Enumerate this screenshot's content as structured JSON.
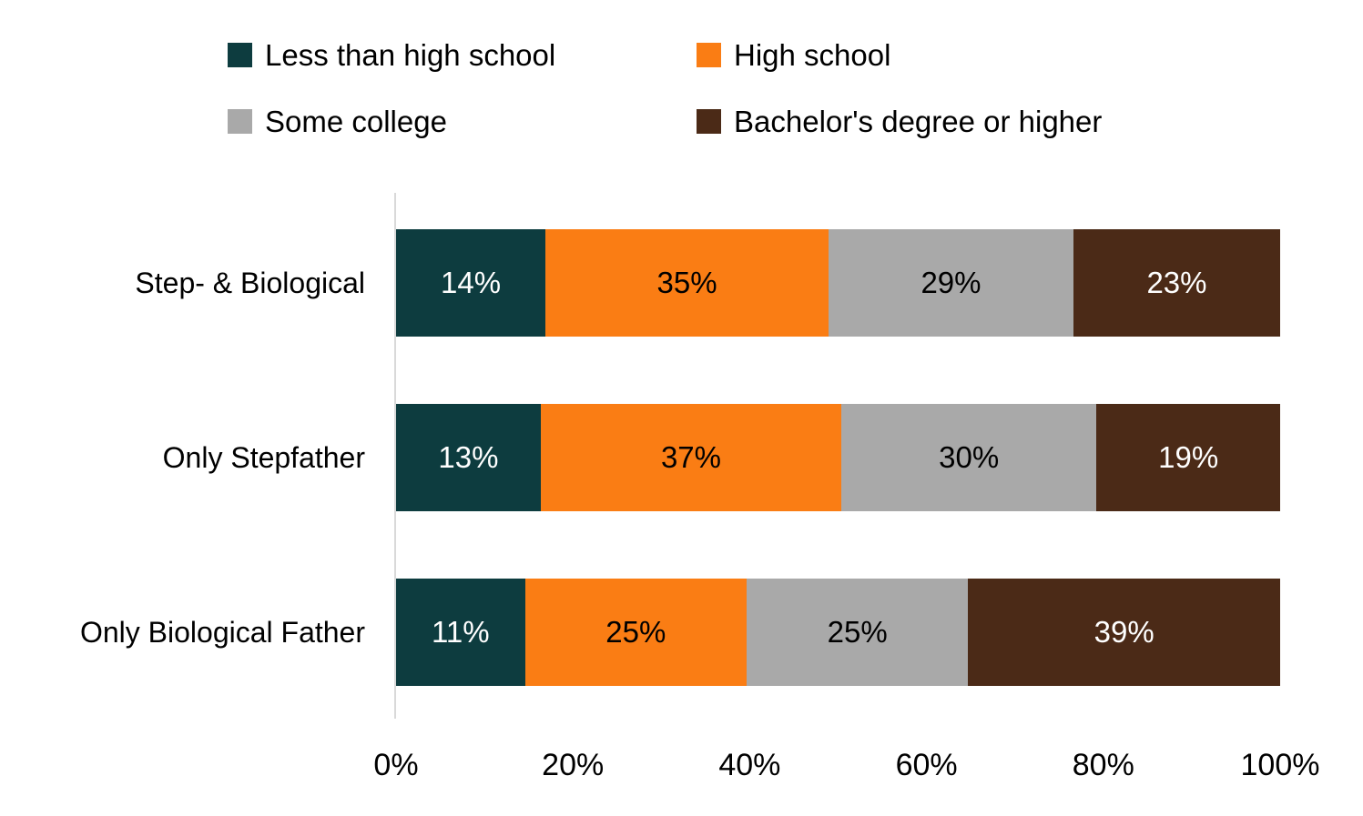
{
  "chart_data": {
    "type": "bar",
    "orientation": "horizontal",
    "stacked": true,
    "normalized_to_100": true,
    "title": "",
    "xlabel": "",
    "ylabel": "",
    "xlim": [
      0,
      100
    ],
    "grid": false,
    "legend_position": "top",
    "axis_line_color": "#d9d9d9",
    "text_color": "#000000",
    "background_color": "#ffffff",
    "value_suffix": "%",
    "categories": [
      "Step- & Biological",
      "Only Stepfather",
      "Only Biological Father"
    ],
    "series": [
      {
        "name": "Less than high school",
        "color": "#0d3c3f",
        "label_color": "#ffffff",
        "values": [
          14,
          13,
          11
        ]
      },
      {
        "name": "High school",
        "color": "#fa7d14",
        "label_color": "#000000",
        "values": [
          35,
          37,
          25
        ]
      },
      {
        "name": "Some college",
        "color": "#a9a9a9",
        "label_color": "#000000",
        "values": [
          29,
          30,
          25
        ]
      },
      {
        "name": "Bachelor's degree or higher",
        "color": "#4b2a17",
        "label_color": "#ffffff",
        "values": [
          23,
          19,
          39
        ]
      }
    ],
    "x_ticks": [
      "0%",
      "20%",
      "40%",
      "60%",
      "80%",
      "100%"
    ]
  }
}
